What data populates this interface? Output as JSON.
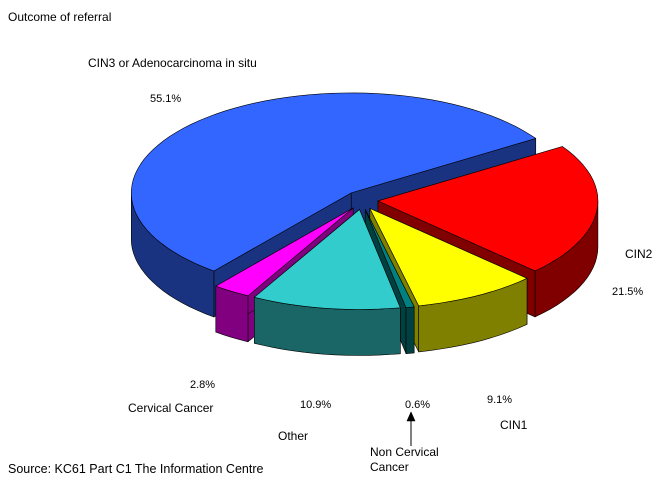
{
  "chart_data": {
    "type": "pie3d",
    "title": "Outcome of referral",
    "categories": [
      "CIN2",
      "CIN1",
      "Non Cervical Cancer",
      "Other",
      "Cervical Cancer",
      "CIN3 or Adenocarcinoma in situ"
    ],
    "values": [
      21.5,
      9.1,
      0.6,
      10.9,
      2.8,
      55.1
    ],
    "value_labels": [
      "21.5%",
      "9.1%",
      "0.6%",
      "10.9%",
      "2.8%",
      "55.1%"
    ],
    "colors": [
      "#ff0000",
      "#ffff00",
      "#008080",
      "#33cccc",
      "#ff00ff",
      "#3366ff"
    ],
    "source": "Source: KC61 Part C1 The Information Centre"
  }
}
